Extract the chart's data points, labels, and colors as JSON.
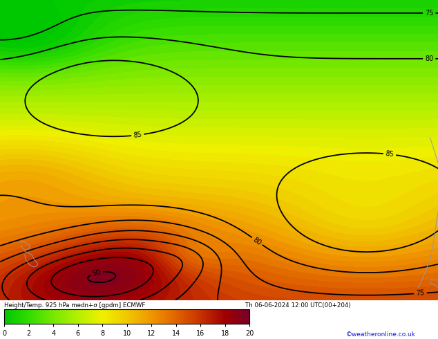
{
  "title_line1": "Height/Temp. 925 hPa medn+σ [gpdm] ECMWF",
  "title_line2": "Th 06-06-2024 12:00 UTC(00+204)",
  "colorbar_values": [
    0,
    2,
    4,
    6,
    8,
    10,
    12,
    14,
    16,
    18,
    20
  ],
  "colorbar_colors": [
    "#00c800",
    "#32dc00",
    "#78e800",
    "#b4f000",
    "#f0f000",
    "#f0c800",
    "#f09600",
    "#e06400",
    "#c83200",
    "#a00000",
    "#780028"
  ],
  "background_color": "#ffffff",
  "watermark": "©weatheronline.co.uk",
  "lon_range": [
    -180,
    -70
  ],
  "lat_range": [
    -60,
    60
  ],
  "contour_color": "#000000",
  "land_color": "#aaaaaa",
  "figsize": [
    6.34,
    4.9
  ],
  "dpi": 100,
  "T_min": 0,
  "T_max": 20,
  "contour_levels_min": 45,
  "contour_levels_max": 95,
  "contour_levels_step": 5,
  "contour_label_levels": [
    50,
    75,
    80,
    85
  ],
  "contour_linewidth": 1.3
}
